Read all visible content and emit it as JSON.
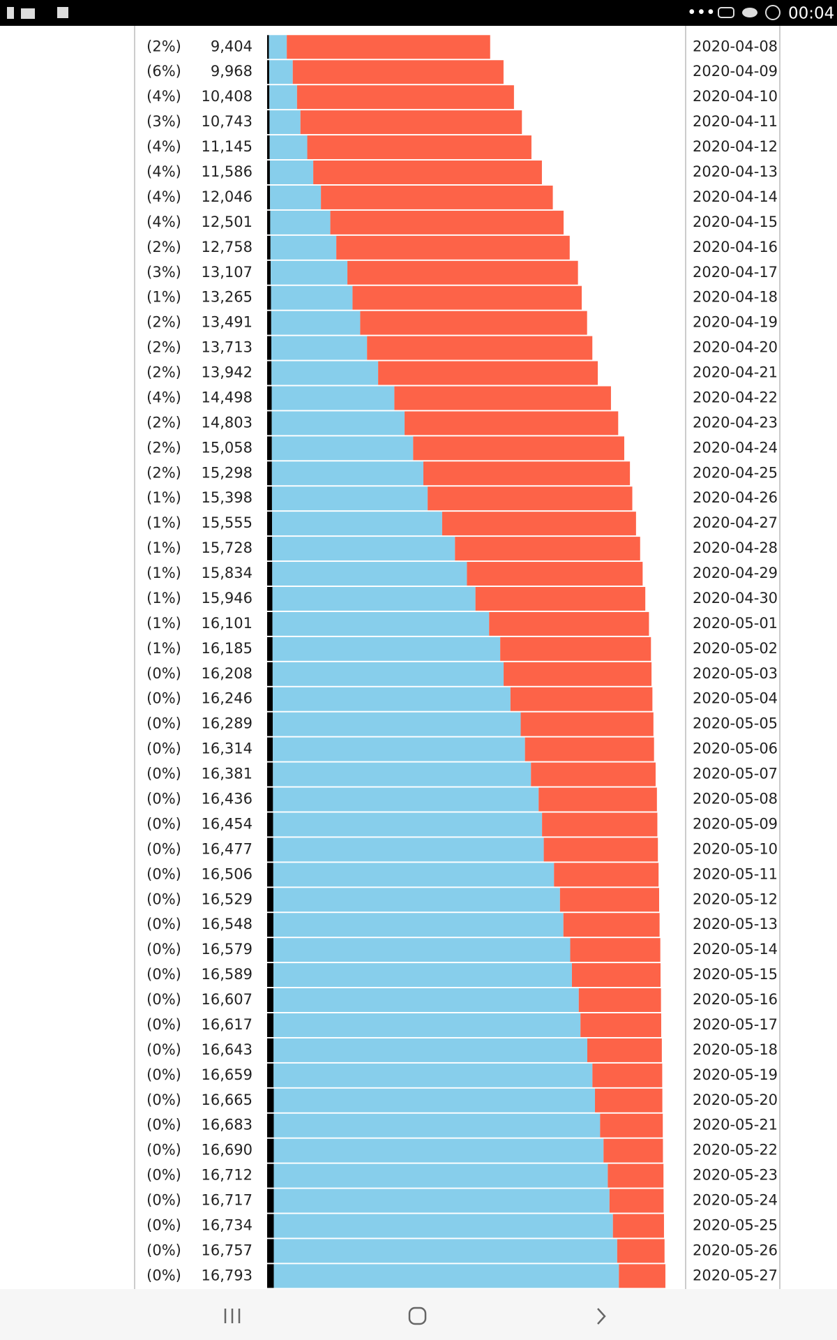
{
  "status_bar": {
    "time": "00:04"
  },
  "chart_data": {
    "type": "bar",
    "categories": [
      "2020-04-08",
      "2020-04-09",
      "2020-04-10",
      "2020-04-11",
      "2020-04-12",
      "2020-04-13",
      "2020-04-14",
      "2020-04-15",
      "2020-04-16",
      "2020-04-17",
      "2020-04-18",
      "2020-04-19",
      "2020-04-20",
      "2020-04-21",
      "2020-04-22",
      "2020-04-23",
      "2020-04-24",
      "2020-04-25",
      "2020-04-26",
      "2020-04-27",
      "2020-04-28",
      "2020-04-29",
      "2020-04-30",
      "2020-05-01",
      "2020-05-02",
      "2020-05-03",
      "2020-05-04",
      "2020-05-05",
      "2020-05-06",
      "2020-05-07",
      "2020-05-08",
      "2020-05-09",
      "2020-05-10",
      "2020-05-11",
      "2020-05-12",
      "2020-05-13",
      "2020-05-14",
      "2020-05-15",
      "2020-05-16",
      "2020-05-17",
      "2020-05-18",
      "2020-05-19",
      "2020-05-20",
      "2020-05-21",
      "2020-05-22",
      "2020-05-23",
      "2020-05-24",
      "2020-05-25",
      "2020-05-26",
      "2020-05-27"
    ],
    "growth_labels": [
      "(2%)",
      "(6%)",
      "(4%)",
      "(3%)",
      "(4%)",
      "(4%)",
      "(4%)",
      "(4%)",
      "(2%)",
      "(3%)",
      "(1%)",
      "(2%)",
      "(2%)",
      "(2%)",
      "(4%)",
      "(2%)",
      "(2%)",
      "(2%)",
      "(1%)",
      "(1%)",
      "(1%)",
      "(1%)",
      "(1%)",
      "(1%)",
      "(1%)",
      "(0%)",
      "(0%)",
      "(0%)",
      "(0%)",
      "(0%)",
      "(0%)",
      "(0%)",
      "(0%)",
      "(0%)",
      "(0%)",
      "(0%)",
      "(0%)",
      "(0%)",
      "(0%)",
      "(0%)",
      "(0%)",
      "(0%)",
      "(0%)",
      "(0%)",
      "(0%)",
      "(0%)",
      "(0%)",
      "(0%)",
      "(0%)",
      "(0%)"
    ],
    "total_labels": [
      "9,404",
      "9,968",
      "10,408",
      "10,743",
      "11,145",
      "11,586",
      "12,046",
      "12,501",
      "12,758",
      "13,107",
      "13,265",
      "13,491",
      "13,713",
      "13,942",
      "14,498",
      "14,803",
      "15,058",
      "15,298",
      "15,398",
      "15,555",
      "15,728",
      "15,834",
      "15,946",
      "16,101",
      "16,185",
      "16,208",
      "16,246",
      "16,289",
      "16,314",
      "16,381",
      "16,436",
      "16,454",
      "16,477",
      "16,506",
      "16,529",
      "16,548",
      "16,579",
      "16,589",
      "16,607",
      "16,617",
      "16,643",
      "16,659",
      "16,665",
      "16,683",
      "16,690",
      "16,712",
      "16,717",
      "16,734",
      "16,757",
      "16,793"
    ],
    "series": [
      {
        "color": "#000000",
        "values": [
          73,
          86,
          95,
          101,
          107,
          116,
          123,
          130,
          142,
          151,
          164,
          172,
          177,
          184,
          192,
          194,
          199,
          201,
          204,
          210,
          212,
          215,
          222,
          225,
          230,
          232,
          235,
          239,
          240,
          244,
          247,
          252,
          256,
          260,
          264,
          264,
          265,
          268,
          268,
          271,
          272,
          272,
          279,
          279,
          279,
          279,
          279,
          280,
          281,
          281
        ]
      },
      {
        "color": "#87ceeb",
        "values": [
          755,
          994,
          1165,
          1303,
          1585,
          1828,
          2145,
          2534,
          2774,
          3233,
          3436,
          3752,
          4035,
          4496,
          5172,
          5602,
          5957,
          6387,
          6564,
          7170,
          7708,
          8209,
          8562,
          9135,
          9598,
          9740,
          10025,
          10453,
          10632,
          10880,
          11201,
          11340,
          11408,
          11836,
          12084,
          12228,
          12515,
          12584,
          12872,
          12941,
          13228,
          13444,
          13545,
          13761,
          13905,
          14085,
          14157,
          14300,
          14479,
          14551
        ]
      },
      {
        "color": "#fd6348",
        "values": [
          8576,
          8888,
          9148,
          9339,
          9453,
          9642,
          9778,
          9837,
          9842,
          9723,
          9665,
          9567,
          9501,
          9262,
          9134,
          9007,
          8902,
          8710,
          8630,
          8175,
          7808,
          7410,
          7162,
          6741,
          6357,
          6236,
          5986,
          5597,
          5442,
          5257,
          4988,
          4862,
          4813,
          4410,
          4181,
          4056,
          3799,
          3737,
          3467,
          3405,
          3143,
          2943,
          2841,
          2643,
          2506,
          2348,
          2281,
          2154,
          1997,
          1961
        ]
      }
    ]
  }
}
